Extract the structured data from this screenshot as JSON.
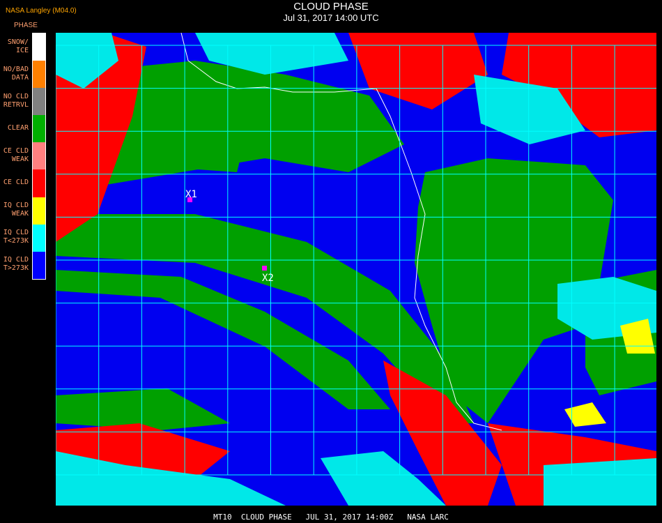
{
  "header": {
    "title": "CLOUD PHASE",
    "subtitle": "Jul 31, 2017 14:00 UTC",
    "org": "NASA Langley (M04.0)"
  },
  "legend": {
    "title": "PHASE",
    "items": [
      {
        "label": "SNOW/\nICE",
        "color": "#ffffff"
      },
      {
        "label": "NO/BAD\nDATA",
        "color": "#ff8000"
      },
      {
        "label": "NO CLD\nRETRVL",
        "color": "#808080"
      },
      {
        "label": "CLEAR",
        "color": "#00b000"
      },
      {
        "label": "CE CLD\nWEAK",
        "color": "#ff8080"
      },
      {
        "label": "CE CLD",
        "color": "#ff0000"
      },
      {
        "label": "IQ CLD\nWEAK",
        "color": "#ffff00"
      },
      {
        "label": "IQ CLD\nT<273K",
        "color": "#00ffff"
      },
      {
        "label": "IQ CLD\nT>273K",
        "color": "#0000ff"
      }
    ]
  },
  "markers": [
    {
      "label": "X1"
    },
    {
      "label": "X2"
    }
  ],
  "colors": {
    "grid": "#00ffff",
    "marker": "#ff00ff",
    "coast": "#ffffff"
  },
  "footer": "MT10  CLOUD PHASE   JUL 31, 2017 14:00Z   NASA LARC"
}
